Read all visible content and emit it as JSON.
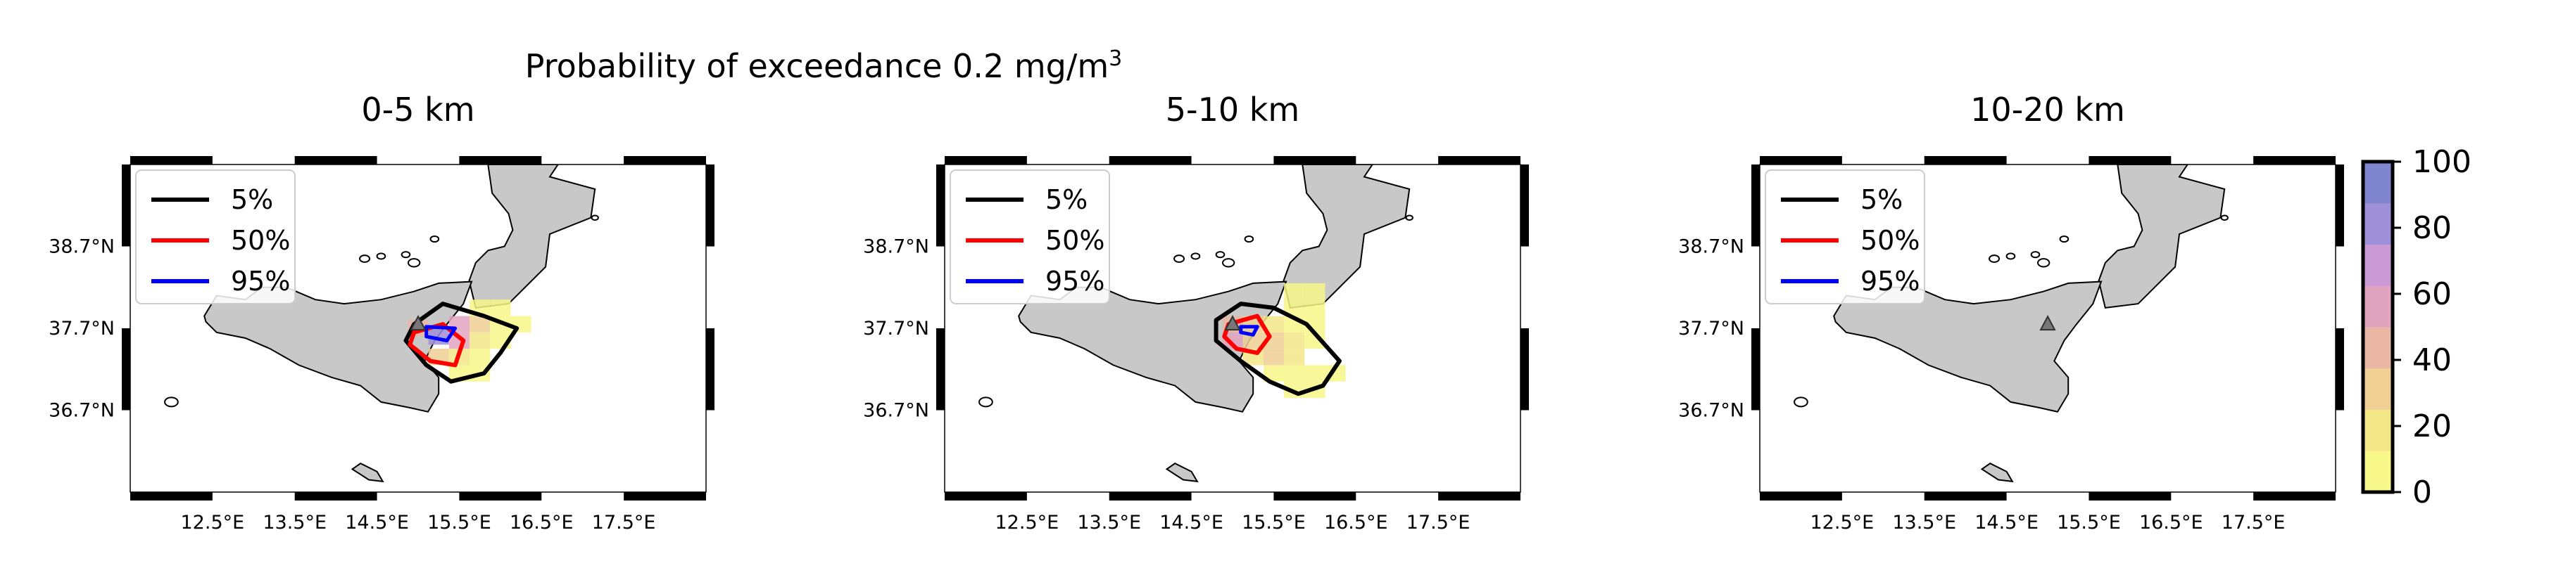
{
  "figure": {
    "suptitle": "Probability of exceedance 0.2 mg/m",
    "suptitle_superscript": "3"
  },
  "chart_data": [
    {
      "type": "heatmap",
      "title": "0-5 km",
      "xticks": [
        "12.5°E",
        "13.5°E",
        "14.5°E",
        "15.5°E",
        "16.5°E",
        "17.5°E"
      ],
      "yticks": [
        "38.7°N",
        "37.7°N",
        "36.7°N"
      ],
      "xlim": [
        11.5,
        18.5
      ],
      "ylim": [
        35.7,
        39.7
      ],
      "legend": {
        "position": "top-left",
        "entries": [
          {
            "label": "5%",
            "color": "#000000"
          },
          {
            "label": "50%",
            "color": "#ff0000"
          },
          {
            "label": "95%",
            "color": "#0000ff"
          }
        ]
      },
      "cells": [
        {
          "lon": 15.75,
          "lat": 37.95,
          "p": 5
        },
        {
          "lon": 16.0,
          "lat": 37.95,
          "p": 3
        },
        {
          "lon": 15.5,
          "lat": 37.75,
          "p": 55
        },
        {
          "lon": 15.75,
          "lat": 37.75,
          "p": 25
        },
        {
          "lon": 16.0,
          "lat": 37.75,
          "p": 8
        },
        {
          "lon": 16.25,
          "lat": 37.75,
          "p": 3
        },
        {
          "lon": 15.0,
          "lat": 37.7,
          "p": 40
        },
        {
          "lon": 15.25,
          "lat": 37.6,
          "p": 85
        },
        {
          "lon": 15.5,
          "lat": 37.55,
          "p": 50
        },
        {
          "lon": 15.75,
          "lat": 37.55,
          "p": 20
        },
        {
          "lon": 16.0,
          "lat": 37.55,
          "p": 6
        },
        {
          "lon": 15.25,
          "lat": 37.35,
          "p": 30
        },
        {
          "lon": 15.5,
          "lat": 37.35,
          "p": 22
        },
        {
          "lon": 15.75,
          "lat": 37.35,
          "p": 10
        },
        {
          "lon": 15.5,
          "lat": 37.15,
          "p": 6
        },
        {
          "lon": 15.75,
          "lat": 37.15,
          "p": 4
        }
      ],
      "contours": [
        {
          "level": "5%",
          "color": "#000000",
          "points": [
            [
              14.95,
              37.75
            ],
            [
              15.3,
              38.0
            ],
            [
              15.8,
              37.85
            ],
            [
              16.2,
              37.7
            ],
            [
              16.0,
              37.4
            ],
            [
              15.8,
              37.15
            ],
            [
              15.4,
              37.05
            ],
            [
              15.1,
              37.25
            ],
            [
              14.85,
              37.55
            ]
          ]
        },
        {
          "level": "50%",
          "color": "#ff0000",
          "points": [
            [
              14.95,
              37.65
            ],
            [
              15.3,
              37.75
            ],
            [
              15.55,
              37.55
            ],
            [
              15.45,
              37.25
            ],
            [
              15.15,
              37.3
            ],
            [
              14.9,
              37.5
            ]
          ]
        },
        {
          "level": "95%",
          "color": "#0000ff",
          "points": [
            [
              15.1,
              37.72
            ],
            [
              15.45,
              37.7
            ],
            [
              15.35,
              37.55
            ],
            [
              15.1,
              37.6
            ]
          ]
        }
      ],
      "volcano": {
        "lon": 15.0,
        "lat": 37.75
      }
    },
    {
      "type": "heatmap",
      "title": "5-10 km",
      "xticks": [
        "12.5°E",
        "13.5°E",
        "14.5°E",
        "15.5°E",
        "16.5°E",
        "17.5°E"
      ],
      "yticks": [
        "38.7°N",
        "37.7°N",
        "36.7°N"
      ],
      "xlim": [
        11.5,
        18.5
      ],
      "ylim": [
        35.7,
        39.7
      ],
      "legend": {
        "position": "top-left",
        "entries": [
          {
            "label": "5%",
            "color": "#000000"
          },
          {
            "label": "50%",
            "color": "#ff0000"
          },
          {
            "label": "95%",
            "color": "#0000ff"
          }
        ]
      },
      "cells": [
        {
          "lon": 15.75,
          "lat": 38.15,
          "p": 5
        },
        {
          "lon": 16.0,
          "lat": 38.15,
          "p": 4
        },
        {
          "lon": 15.75,
          "lat": 37.95,
          "p": 6
        },
        {
          "lon": 16.0,
          "lat": 37.95,
          "p": 5
        },
        {
          "lon": 15.0,
          "lat": 37.75,
          "p": 45
        },
        {
          "lon": 15.25,
          "lat": 37.75,
          "p": 30
        },
        {
          "lon": 15.5,
          "lat": 37.75,
          "p": 15
        },
        {
          "lon": 15.75,
          "lat": 37.75,
          "p": 8
        },
        {
          "lon": 16.0,
          "lat": 37.75,
          "p": 4
        },
        {
          "lon": 15.0,
          "lat": 37.55,
          "p": 60
        },
        {
          "lon": 15.25,
          "lat": 37.55,
          "p": 35
        },
        {
          "lon": 15.5,
          "lat": 37.55,
          "p": 25
        },
        {
          "lon": 15.75,
          "lat": 37.55,
          "p": 15
        },
        {
          "lon": 16.0,
          "lat": 37.55,
          "p": 5
        },
        {
          "lon": 15.25,
          "lat": 37.35,
          "p": 20
        },
        {
          "lon": 15.5,
          "lat": 37.35,
          "p": 25
        },
        {
          "lon": 15.75,
          "lat": 37.35,
          "p": 20
        },
        {
          "lon": 15.5,
          "lat": 37.15,
          "p": 10
        },
        {
          "lon": 15.75,
          "lat": 37.15,
          "p": 12
        },
        {
          "lon": 16.0,
          "lat": 37.15,
          "p": 5
        },
        {
          "lon": 16.25,
          "lat": 37.15,
          "p": 3
        },
        {
          "lon": 15.75,
          "lat": 36.95,
          "p": 4
        },
        {
          "lon": 16.0,
          "lat": 36.95,
          "p": 4
        }
      ],
      "contours": [
        {
          "level": "5%",
          "color": "#000000",
          "points": [
            [
              14.8,
              37.8
            ],
            [
              15.1,
              38.0
            ],
            [
              15.5,
              37.95
            ],
            [
              15.9,
              37.75
            ],
            [
              16.3,
              37.3
            ],
            [
              16.1,
              37.0
            ],
            [
              15.8,
              36.9
            ],
            [
              15.45,
              37.05
            ],
            [
              15.1,
              37.3
            ],
            [
              14.8,
              37.55
            ]
          ]
        },
        {
          "level": "50%",
          "color": "#ff0000",
          "points": [
            [
              14.95,
              37.75
            ],
            [
              15.3,
              37.85
            ],
            [
              15.45,
              37.6
            ],
            [
              15.3,
              37.4
            ],
            [
              15.05,
              37.45
            ],
            [
              14.9,
              37.6
            ]
          ]
        },
        {
          "level": "95%",
          "color": "#0000ff",
          "points": [
            [
              15.1,
              37.72
            ],
            [
              15.3,
              37.72
            ],
            [
              15.25,
              37.62
            ],
            [
              15.1,
              37.65
            ]
          ]
        }
      ],
      "volcano": {
        "lon": 15.0,
        "lat": 37.75
      }
    },
    {
      "type": "heatmap",
      "title": "10-20 km",
      "xticks": [
        "12.5°E",
        "13.5°E",
        "14.5°E",
        "15.5°E",
        "16.5°E",
        "17.5°E"
      ],
      "yticks": [
        "38.7°N",
        "37.7°N",
        "36.7°N"
      ],
      "xlim": [
        11.5,
        18.5
      ],
      "ylim": [
        35.7,
        39.7
      ],
      "legend": {
        "position": "top-left",
        "entries": [
          {
            "label": "5%",
            "color": "#000000"
          },
          {
            "label": "50%",
            "color": "#ff0000"
          },
          {
            "label": "95%",
            "color": "#0000ff"
          }
        ]
      },
      "cells": [],
      "contours": [],
      "volcano": {
        "lon": 15.0,
        "lat": 37.75
      }
    }
  ],
  "colorbar": {
    "ticks": [
      "0",
      "20",
      "40",
      "60",
      "80",
      "100"
    ],
    "range": [
      0,
      100
    ],
    "colors": [
      "#f7f78a",
      "#f3e687",
      "#efcf93",
      "#ebb7a5",
      "#e0a4bf",
      "#c99ad6",
      "#9f8ed8",
      "#7f86cf"
    ]
  }
}
